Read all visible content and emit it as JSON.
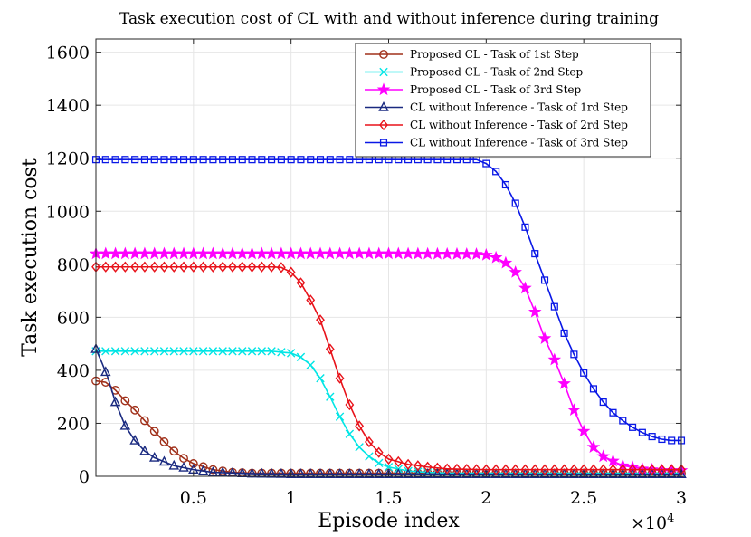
{
  "chart_data": {
    "type": "line",
    "title": "Task execution cost of CL with and without inference during training",
    "xlabel": "Episode index",
    "ylabel": "Task execution cost",
    "x_exponent_label": "×10",
    "x_exponent_power": "4",
    "xlim": [
      0,
      3
    ],
    "ylim": [
      0,
      1650
    ],
    "x_scale": 10000,
    "x_ticks": [
      0.5,
      1,
      1.5,
      2,
      2.5,
      3
    ],
    "x_tick_labels": [
      "0.5",
      "1",
      "1.5",
      "2",
      "2.5",
      "3"
    ],
    "y_ticks": [
      0,
      200,
      400,
      600,
      800,
      1000,
      1200,
      1400,
      1600
    ],
    "y_tick_labels": [
      "0",
      "200",
      "400",
      "600",
      "800",
      "1000",
      "1200",
      "1400",
      "1600"
    ],
    "grid": true,
    "legend_position": "top-right",
    "series": [
      {
        "name": "Proposed CL - Task of 1st Step",
        "color": "#a0301a",
        "marker": "circle",
        "x": [
          0.0,
          0.05,
          0.1,
          0.15,
          0.2,
          0.25,
          0.3,
          0.35,
          0.4,
          0.45,
          0.5,
          0.6,
          0.7,
          0.8,
          1.0,
          1.5,
          2.0,
          2.5,
          3.0
        ],
        "y": [
          360,
          355,
          325,
          285,
          250,
          210,
          170,
          130,
          95,
          68,
          48,
          25,
          15,
          12,
          12,
          12,
          12,
          12,
          12
        ]
      },
      {
        "name": "Proposed CL - Task of 2nd Step",
        "color": "#00e5e5",
        "marker": "x",
        "x": [
          0.0,
          0.5,
          0.9,
          1.0,
          1.05,
          1.1,
          1.15,
          1.2,
          1.25,
          1.3,
          1.35,
          1.4,
          1.45,
          1.5,
          1.6,
          1.7,
          1.8,
          2.0,
          2.5,
          3.0
        ],
        "y": [
          472,
          472,
          472,
          465,
          450,
          420,
          370,
          300,
          225,
          160,
          110,
          75,
          50,
          35,
          20,
          15,
          12,
          12,
          12,
          12
        ]
      },
      {
        "name": "Proposed CL - Task of 3rd Step",
        "color": "#ff00ff",
        "marker": "star",
        "x": [
          0.0,
          0.5,
          1.0,
          1.5,
          1.95,
          2.0,
          2.05,
          2.1,
          2.15,
          2.2,
          2.25,
          2.3,
          2.35,
          2.4,
          2.45,
          2.5,
          2.55,
          2.6,
          2.7,
          2.8,
          2.9,
          3.0
        ],
        "y": [
          840,
          840,
          840,
          840,
          838,
          835,
          825,
          805,
          770,
          710,
          620,
          520,
          440,
          350,
          250,
          170,
          110,
          75,
          40,
          28,
          22,
          22
        ]
      },
      {
        "name": "CL without Inference - Task of 1rd Step",
        "color": "#1a2a80",
        "marker": "triangle",
        "x": [
          0.0,
          0.03,
          0.06,
          0.1,
          0.15,
          0.2,
          0.25,
          0.3,
          0.35,
          0.4,
          0.5,
          0.6,
          0.8,
          1.0,
          1.5,
          2.0,
          2.5,
          3.0
        ],
        "y": [
          480,
          430,
          375,
          280,
          190,
          135,
          95,
          70,
          55,
          40,
          25,
          15,
          10,
          8,
          8,
          8,
          8,
          8
        ]
      },
      {
        "name": "CL without Inference - Task of 2rd Step",
        "color": "#e8121a",
        "marker": "diamond",
        "x": [
          0.0,
          0.5,
          0.9,
          0.95,
          1.0,
          1.05,
          1.1,
          1.15,
          1.2,
          1.25,
          1.3,
          1.35,
          1.4,
          1.45,
          1.5,
          1.6,
          1.7,
          1.8,
          2.0,
          2.5,
          3.0
        ],
        "y": [
          790,
          790,
          790,
          788,
          770,
          730,
          665,
          590,
          480,
          370,
          270,
          190,
          130,
          90,
          65,
          45,
          35,
          28,
          25,
          25,
          25
        ]
      },
      {
        "name": "CL without Inference - Task of 3rd Step",
        "color": "#0a18e6",
        "marker": "square",
        "x": [
          0.0,
          0.5,
          1.0,
          1.5,
          1.95,
          2.0,
          2.05,
          2.1,
          2.15,
          2.2,
          2.25,
          2.3,
          2.35,
          2.4,
          2.45,
          2.5,
          2.55,
          2.6,
          2.65,
          2.7,
          2.75,
          2.8,
          2.85,
          2.9,
          2.95,
          3.0
        ],
        "y": [
          1195,
          1195,
          1195,
          1195,
          1195,
          1180,
          1150,
          1100,
          1030,
          940,
          840,
          740,
          640,
          540,
          460,
          390,
          330,
          280,
          240,
          210,
          185,
          165,
          150,
          140,
          135,
          135
        ]
      }
    ],
    "legend_entries": [
      "Proposed CL - Task of 1st Step",
      "Proposed CL - Task of 2nd Step",
      "Proposed CL - Task of 3rd Step",
      "CL without Inference - Task of 1rd Step",
      "CL without Inference - Task of 2rd Step",
      "CL without Inference - Task of 3rd Step"
    ]
  }
}
